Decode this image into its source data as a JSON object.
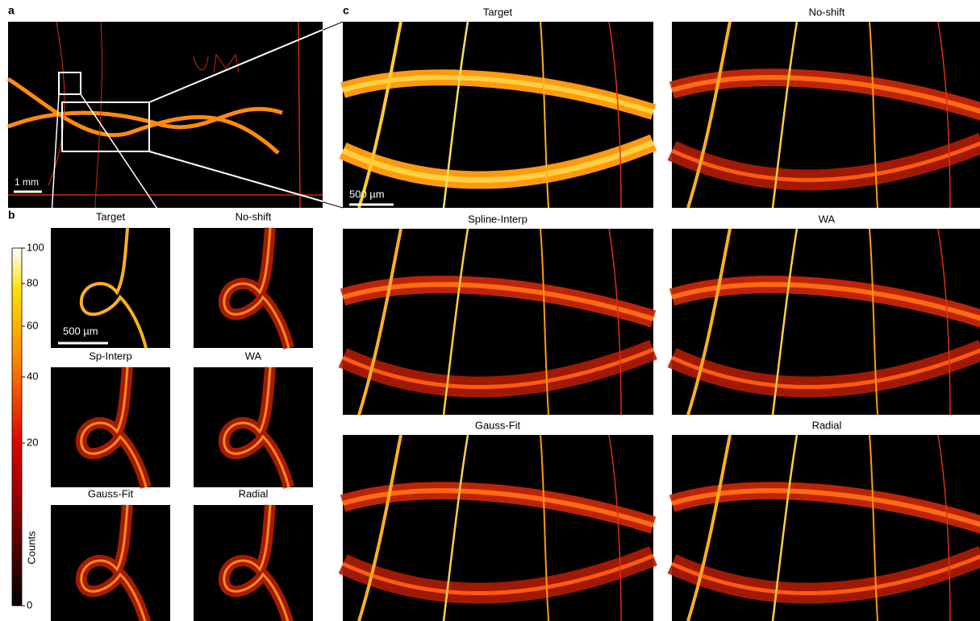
{
  "panel_a": {
    "label": "a",
    "scale_bar": "1 mm"
  },
  "panel_b": {
    "label": "b",
    "titles": [
      "Target",
      "No-shift",
      "Sp-Interp",
      "WA",
      "Gauss-Fit",
      "Radial"
    ],
    "scale_bar": "500 µm"
  },
  "colorbar": {
    "label": "Counts",
    "ticks": [
      100,
      80,
      60,
      40,
      20,
      0
    ]
  },
  "panel_c": {
    "label": "c",
    "titles": [
      "Target",
      "No-shift",
      "Spline-Interp",
      "WA",
      "Gauss-Fit",
      "Radial"
    ],
    "scale_bar": "500 µm"
  }
}
